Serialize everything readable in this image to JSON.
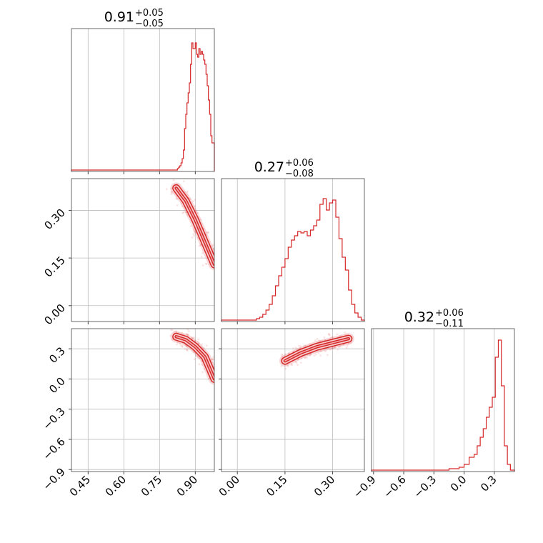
{
  "accent_color": "#d62728",
  "grid": true,
  "chart_data": [
    {
      "type": "histogram",
      "panel": "diag-0",
      "title": {
        "value": "0.91",
        "plus": "+0.05",
        "minus": "−0.05"
      },
      "xlim": [
        0.38,
        0.98
      ],
      "ylim": [
        0,
        1.0
      ],
      "xticks": [
        0.45,
        0.6,
        0.75,
        0.9
      ],
      "xtick_labels": [
        "0.45",
        "0.60",
        "0.75",
        "0.90"
      ],
      "bin_edges": [
        0.38,
        0.82,
        0.825,
        0.83,
        0.835,
        0.84,
        0.845,
        0.85,
        0.855,
        0.86,
        0.865,
        0.87,
        0.875,
        0.88,
        0.885,
        0.89,
        0.895,
        0.9,
        0.905,
        0.91,
        0.915,
        0.92,
        0.925,
        0.93,
        0.935,
        0.94,
        0.945,
        0.95,
        0.955,
        0.96,
        0.965,
        0.97,
        0.975,
        0.98
      ],
      "counts": [
        0.01,
        0.01,
        0.02,
        0.03,
        0.04,
        0.06,
        0.09,
        0.15,
        0.3,
        0.4,
        0.48,
        0.55,
        0.62,
        0.75,
        0.9,
        0.86,
        0.86,
        0.9,
        0.82,
        0.8,
        0.86,
        0.82,
        0.84,
        0.82,
        0.78,
        0.75,
        0.68,
        0.6,
        0.5,
        0.4,
        0.25,
        0.2,
        0.2
      ]
    },
    {
      "type": "histogram",
      "panel": "diag-1",
      "title": {
        "value": "0.27",
        "plus": "+0.06",
        "minus": "−0.08"
      },
      "xlim": [
        -0.05,
        0.4
      ],
      "ylim": [
        0,
        1.0
      ],
      "xticks": [
        0.0,
        0.15,
        0.3
      ],
      "xtick_labels": [
        "0.00",
        "0.15",
        "0.30"
      ],
      "bin_edges": [
        -0.05,
        0.05,
        0.06,
        0.07,
        0.08,
        0.09,
        0.1,
        0.11,
        0.12,
        0.13,
        0.14,
        0.15,
        0.16,
        0.17,
        0.18,
        0.19,
        0.2,
        0.21,
        0.22,
        0.23,
        0.24,
        0.25,
        0.26,
        0.27,
        0.28,
        0.29,
        0.3,
        0.31,
        0.32,
        0.33,
        0.34,
        0.35,
        0.36,
        0.37,
        0.38,
        0.39,
        0.4
      ],
      "counts": [
        0.01,
        0.01,
        0.02,
        0.03,
        0.05,
        0.08,
        0.12,
        0.18,
        0.25,
        0.32,
        0.38,
        0.44,
        0.52,
        0.57,
        0.6,
        0.63,
        0.62,
        0.63,
        0.6,
        0.64,
        0.67,
        0.71,
        0.82,
        0.86,
        0.78,
        0.83,
        0.85,
        0.73,
        0.58,
        0.45,
        0.36,
        0.22,
        0.12,
        0.06,
        0.03,
        0.01
      ]
    },
    {
      "type": "histogram",
      "panel": "diag-2",
      "title": {
        "value": "0.32",
        "plus": "+0.06",
        "minus": "−0.11"
      },
      "xlim": [
        -0.92,
        0.5
      ],
      "ylim": [
        0,
        1.0
      ],
      "xticks": [
        -0.9,
        -0.6,
        -0.3,
        0.0,
        0.3
      ],
      "xtick_labels": [
        "−0.9",
        "−0.6",
        "−0.3",
        "0.0",
        "0.3"
      ],
      "bin_edges": [
        -0.92,
        -0.15,
        -0.05,
        0.0,
        0.05,
        0.1,
        0.13,
        0.16,
        0.19,
        0.22,
        0.25,
        0.28,
        0.31,
        0.34,
        0.37,
        0.4,
        0.43,
        0.46,
        0.5
      ],
      "counts": [
        0.01,
        0.02,
        0.03,
        0.05,
        0.1,
        0.12,
        0.18,
        0.24,
        0.3,
        0.38,
        0.45,
        0.52,
        0.8,
        0.92,
        0.6,
        0.18,
        0.05,
        0.01
      ]
    },
    {
      "type": "scatter",
      "panel": "pair-1-0",
      "style": "2d-density-contours",
      "xlim": [
        0.38,
        0.98
      ],
      "ylim": [
        -0.05,
        0.4
      ],
      "yticks": [
        0.0,
        0.15,
        0.3
      ],
      "ytick_labels": [
        "0.00",
        "0.15",
        "0.30"
      ],
      "ridge_x": [
        0.82,
        0.86,
        0.9,
        0.94,
        0.98
      ],
      "ridge_y": [
        0.37,
        0.33,
        0.27,
        0.2,
        0.13
      ]
    },
    {
      "type": "scatter",
      "panel": "pair-2-0",
      "style": "2d-density-contours",
      "xlim": [
        0.38,
        0.98
      ],
      "ylim": [
        -0.92,
        0.5
      ],
      "yticks": [
        -0.9,
        -0.6,
        -0.3,
        0.0,
        0.3
      ],
      "ytick_labels": [
        "−0.9",
        "−0.6",
        "−0.3",
        "0.0",
        "0.3"
      ],
      "ridge_x": [
        0.82,
        0.86,
        0.9,
        0.94,
        0.98
      ],
      "ridge_y": [
        0.42,
        0.39,
        0.32,
        0.22,
        0.0
      ]
    },
    {
      "type": "scatter",
      "panel": "pair-2-1",
      "style": "2d-density-contours",
      "xlim": [
        -0.05,
        0.4
      ],
      "ylim": [
        -0.92,
        0.5
      ],
      "ridge_x": [
        0.15,
        0.2,
        0.25,
        0.3,
        0.35
      ],
      "ridge_y": [
        0.18,
        0.26,
        0.32,
        0.36,
        0.4
      ]
    }
  ]
}
